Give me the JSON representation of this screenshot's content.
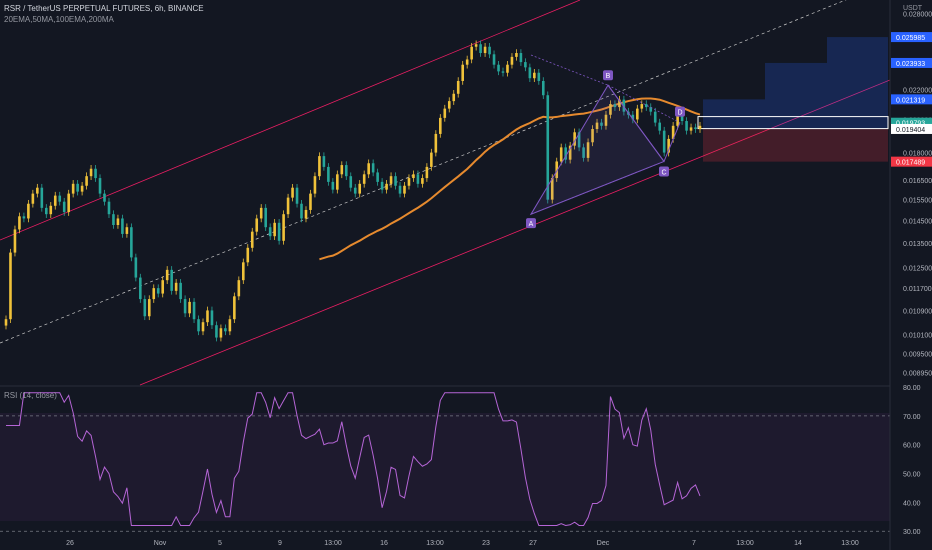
{
  "header": {
    "symbol_line": "RSR / TetherUS PERPETUAL FUTURES, 6h, BINANCE",
    "indicators_line": "20EMA,50MA,100EMA,200MA",
    "currency": "USDT"
  },
  "rsi_panel": {
    "title": "RSI (14, close)"
  },
  "colors": {
    "background": "#131722",
    "bull": "#f0c23a",
    "bear": "#26a69a",
    "ma": "#e68a2e",
    "channel": "#e91e63",
    "harmonic": "#7e57c2",
    "rsi": "#b565d6",
    "target": "#2962ff",
    "stop": "#f23645"
  },
  "chart_data": [
    {
      "type": "candlestick",
      "title": "RSR / TetherUS PERPETUAL FUTURES, 6h, BINANCE",
      "y_scale": "log",
      "ylim": [
        0.0086,
        0.0285
      ],
      "y_ticks": [
        "0.028000",
        "0.026000",
        "0.024000",
        "0.022000",
        "0.020000",
        "0.018000",
        "0.016500",
        "0.015500",
        "0.014500",
        "0.013500",
        "0.012500",
        "0.011700",
        "0.010900",
        "0.010100",
        "0.009500",
        "0.008950"
      ],
      "x_ticks": [
        "26",
        "Nov",
        "5",
        "9",
        "13:00",
        "16",
        "13:00",
        "23",
        "27",
        "Dec",
        "7",
        "13:00",
        "14",
        "13:00"
      ],
      "price_tags": [
        {
          "label": "0.025985",
          "kind": "target"
        },
        {
          "label": "0.023933",
          "kind": "target"
        },
        {
          "label": "0.021319",
          "kind": "target"
        },
        {
          "label": "0.019793",
          "kind": "last"
        },
        {
          "label": "0.019404",
          "kind": "entry"
        },
        {
          "label": "0.017489",
          "kind": "stop"
        }
      ],
      "pattern_points": [
        {
          "label": "A",
          "price": 0.0148
        },
        {
          "label": "B",
          "price": 0.0223
        },
        {
          "label": "C",
          "price": 0.0175
        },
        {
          "label": "D",
          "price": 0.0198
        }
      ],
      "close_series": [
        0.0106,
        0.0131,
        0.0141,
        0.0147,
        0.0146,
        0.0153,
        0.0158,
        0.0161,
        0.0151,
        0.0148,
        0.0152,
        0.0157,
        0.0154,
        0.0149,
        0.0158,
        0.0163,
        0.0159,
        0.0162,
        0.0167,
        0.0171,
        0.0166,
        0.0158,
        0.0154,
        0.0148,
        0.0143,
        0.0146,
        0.0139,
        0.0142,
        0.0129,
        0.0121,
        0.0113,
        0.0107,
        0.0113,
        0.0117,
        0.0115,
        0.012,
        0.0124,
        0.0116,
        0.0119,
        0.0113,
        0.0108,
        0.0112,
        0.0106,
        0.0102,
        0.0105,
        0.0109,
        0.0104,
        0.01,
        0.0103,
        0.0102,
        0.0106,
        0.0114,
        0.012,
        0.0127,
        0.0133,
        0.014,
        0.0146,
        0.0151,
        0.0142,
        0.0138,
        0.0144,
        0.0136,
        0.0148,
        0.0156,
        0.0161,
        0.0153,
        0.0146,
        0.015,
        0.0158,
        0.0167,
        0.0178,
        0.0172,
        0.0164,
        0.016,
        0.0168,
        0.0173,
        0.0167,
        0.0161,
        0.0158,
        0.0163,
        0.0168,
        0.0174,
        0.0169,
        0.0164,
        0.016,
        0.0163,
        0.0167,
        0.0162,
        0.0158,
        0.0162,
        0.0166,
        0.0168,
        0.0163,
        0.0166,
        0.0172,
        0.018,
        0.0191,
        0.0201,
        0.0207,
        0.0212,
        0.0217,
        0.0226,
        0.0238,
        0.0242,
        0.0252,
        0.0254,
        0.0247,
        0.0252,
        0.0246,
        0.0238,
        0.0233,
        0.0232,
        0.0238,
        0.0244,
        0.0247,
        0.024,
        0.0236,
        0.0228,
        0.0232,
        0.0226,
        0.0216,
        0.0155,
        0.0166,
        0.0175,
        0.0183,
        0.0176,
        0.0184,
        0.0192,
        0.0183,
        0.0177,
        0.0186,
        0.0194,
        0.0198,
        0.0196,
        0.0203,
        0.021,
        0.0208,
        0.0213,
        0.0205,
        0.0203,
        0.02,
        0.0207,
        0.021,
        0.0208,
        0.0205,
        0.0198,
        0.0193,
        0.018,
        0.0188,
        0.0196,
        0.0203,
        0.0199,
        0.0193,
        0.0195,
        0.0194,
        0.0196
      ],
      "rsi": {
        "ylim": [
          28,
          80
        ],
        "y_ticks": [
          "80.00",
          "70.00",
          "60.00",
          "50.00",
          "40.00",
          "30.00"
        ],
        "overbought": 70,
        "oversold": 30
      }
    }
  ]
}
